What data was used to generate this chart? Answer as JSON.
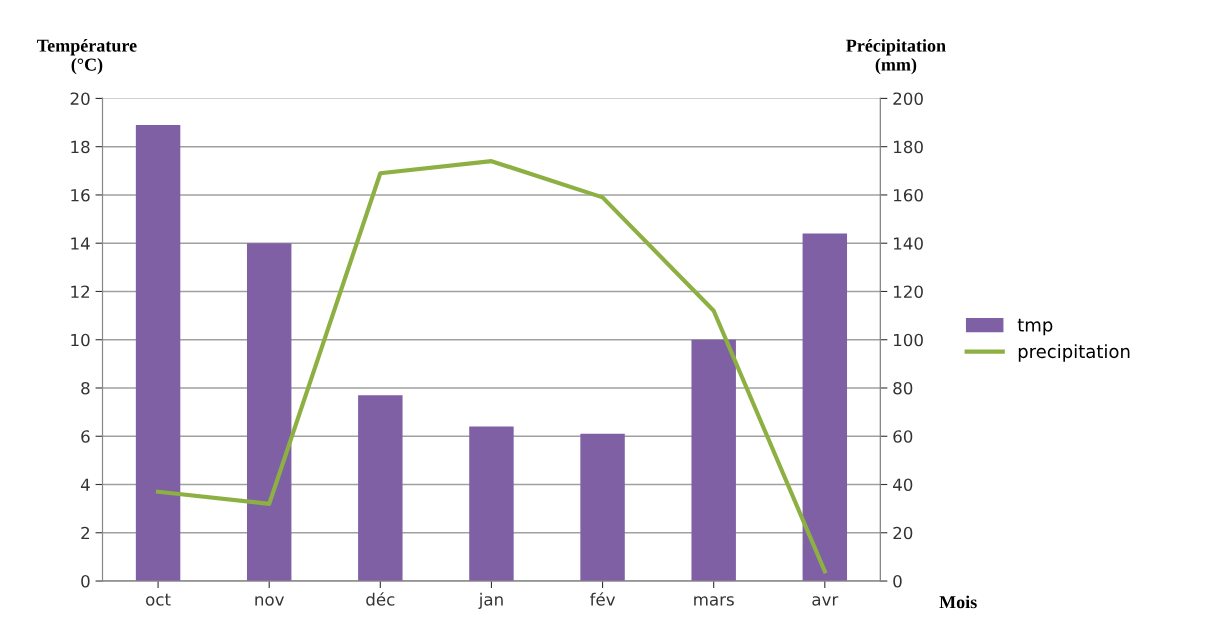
{
  "chart_data": {
    "type": "bar",
    "xlabel": "Mois",
    "ylabel": "Température\n(°C)",
    "y2label": "Précipitation\n(mm)",
    "categories": [
      "oct",
      "nov",
      "déc",
      "jan",
      "fév",
      "mars",
      "avr"
    ],
    "series": [
      {
        "name": "tmp",
        "color": "#7f60a4",
        "values": [
          18.9,
          14.0,
          7.7,
          6.4,
          6.1,
          10.0,
          14.4
        ]
      },
      {
        "name": "precipitation",
        "type": "line",
        "axis": "y2",
        "color": "#8db043",
        "values": [
          37,
          32,
          169,
          174,
          159,
          112,
          4
        ]
      }
    ],
    "ylim": [
      0,
      20
    ],
    "yticks": [
      0,
      2,
      4,
      6,
      8,
      10,
      12,
      14,
      16,
      18,
      20
    ],
    "y2lim": [
      0,
      200
    ],
    "y2ticks": [
      0,
      20,
      40,
      60,
      80,
      100,
      120,
      140,
      160,
      180,
      200
    ],
    "grid": "y",
    "legend": "right",
    "marker": "none",
    "line_style": "solid"
  }
}
